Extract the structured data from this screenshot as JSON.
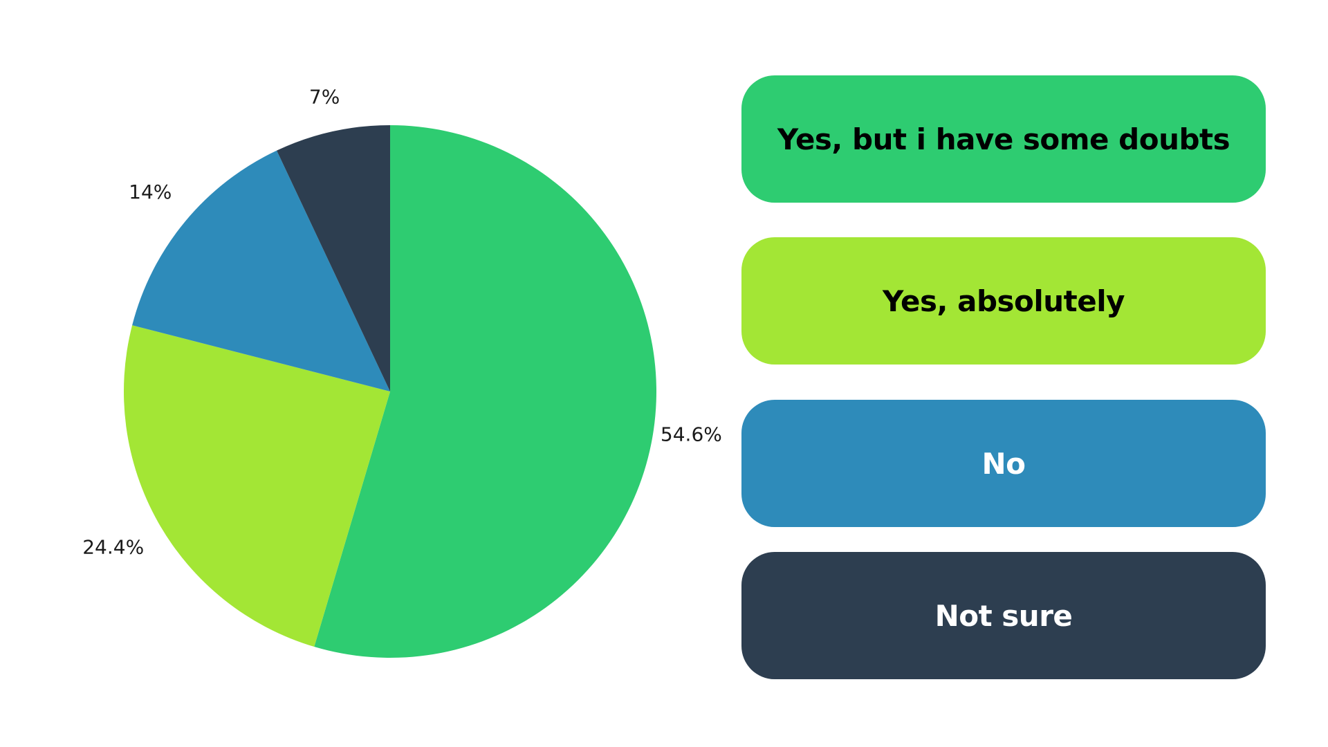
{
  "chart_data": {
    "type": "pie",
    "start": "12 o'clock",
    "direction": "clockwise",
    "slices": [
      {
        "label": "Yes, but i have some doubts",
        "value": 54.6,
        "value_label": "54.6%",
        "color": "#2ECC71",
        "text_color": "#000000"
      },
      {
        "label": "Yes, absolutely",
        "value": 24.4,
        "value_label": "24.4%",
        "color": "#A3E635",
        "text_color": "#000000"
      },
      {
        "label": "No",
        "value": 14,
        "value_label": "14%",
        "color": "#2E8BBA",
        "text_color": "#FFFFFF"
      },
      {
        "label": "Not sure",
        "value": 7,
        "value_label": "7%",
        "color": "#2D3E50",
        "text_color": "#FFFFFF"
      }
    ]
  }
}
